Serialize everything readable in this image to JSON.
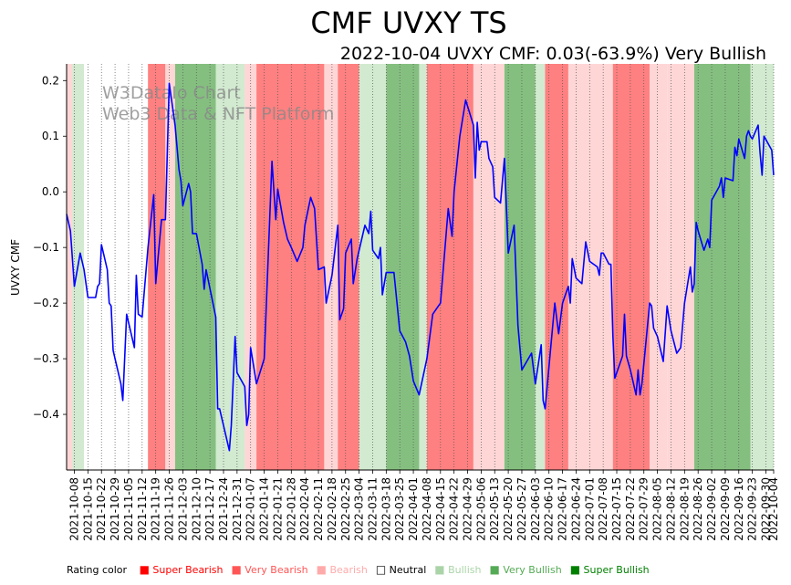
{
  "chart_data": {
    "type": "line",
    "title": "CMF UVXY TS",
    "subtitle": "2022-10-04 UVXY CMF: 0.03(-63.9%) Very Bullish",
    "ylabel": "UVXY CMF",
    "xlabel": "",
    "ylim": [
      -0.5,
      0.23
    ],
    "yticks": [
      -0.4,
      -0.3,
      -0.2,
      -0.1,
      0.0,
      0.1,
      0.2
    ],
    "ytick_labels": [
      "−0.4",
      "−0.3",
      "−0.2",
      "−0.1",
      "0.0",
      "0.1",
      "0.2"
    ],
    "watermark": [
      "W3DataIo Chart",
      "Web3 Data & NFT Platform"
    ],
    "grid": "vertical dotted at each date tick",
    "x_start": "2021-10-04",
    "x_end": "2022-10-04",
    "x_tick_labels": [
      "2021-10-08",
      "2021-10-15",
      "2021-10-22",
      "2021-10-29",
      "2021-11-05",
      "2021-11-12",
      "2021-11-19",
      "2021-11-26",
      "2021-12-03",
      "2021-12-10",
      "2021-12-17",
      "2021-12-24",
      "2021-12-31",
      "2022-01-07",
      "2022-01-14",
      "2022-01-21",
      "2022-01-28",
      "2022-02-04",
      "2022-02-11",
      "2022-02-18",
      "2022-02-25",
      "2022-03-04",
      "2022-03-11",
      "2022-03-18",
      "2022-03-25",
      "2022-04-01",
      "2022-04-08",
      "2022-04-15",
      "2022-04-22",
      "2022-04-29",
      "2022-05-06",
      "2022-05-13",
      "2022-05-20",
      "2022-05-27",
      "2022-06-03",
      "2022-06-10",
      "2022-06-17",
      "2022-06-24",
      "2022-07-01",
      "2022-07-08",
      "2022-07-15",
      "2022-07-22",
      "2022-07-29",
      "2022-08-05",
      "2022-08-12",
      "2022-08-19",
      "2022-08-26",
      "2022-09-02",
      "2022-09-09",
      "2022-09-16",
      "2022-09-23",
      "2022-09-30",
      "2022-10-04"
    ],
    "series": [
      {
        "name": "UVXY CMF",
        "color": "#0000ff",
        "points": [
          [
            "2021-10-04",
            -0.04
          ],
          [
            "2021-10-06",
            -0.07
          ],
          [
            "2021-10-08",
            -0.17
          ],
          [
            "2021-10-11",
            -0.11
          ],
          [
            "2021-10-13",
            -0.14
          ],
          [
            "2021-10-15",
            -0.19
          ],
          [
            "2021-10-19",
            -0.19
          ],
          [
            "2021-10-20",
            -0.17
          ],
          [
            "2021-10-21",
            -0.165
          ],
          [
            "2021-10-22",
            -0.095
          ],
          [
            "2021-10-25",
            -0.14
          ],
          [
            "2021-10-26",
            -0.2
          ],
          [
            "2021-10-27",
            -0.205
          ],
          [
            "2021-10-28",
            -0.285
          ],
          [
            "2021-10-29",
            -0.3
          ],
          [
            "2021-11-01",
            -0.345
          ],
          [
            "2021-11-02",
            -0.375
          ],
          [
            "2021-11-04",
            -0.22
          ],
          [
            "2021-11-08",
            -0.28
          ],
          [
            "2021-11-09",
            -0.15
          ],
          [
            "2021-11-10",
            -0.22
          ],
          [
            "2021-11-12",
            -0.225
          ],
          [
            "2021-11-15",
            -0.1
          ],
          [
            "2021-11-18",
            -0.005
          ],
          [
            "2021-11-19",
            -0.165
          ],
          [
            "2021-11-22",
            -0.05
          ],
          [
            "2021-11-24",
            -0.05
          ],
          [
            "2021-11-26",
            0.195
          ],
          [
            "2021-11-29",
            0.12
          ],
          [
            "2021-12-01",
            0.04
          ],
          [
            "2021-12-02",
            0.02
          ],
          [
            "2021-12-03",
            -0.025
          ],
          [
            "2021-12-06",
            0.015
          ],
          [
            "2021-12-07",
            0.0
          ],
          [
            "2021-12-08",
            -0.075
          ],
          [
            "2021-12-10",
            -0.075
          ],
          [
            "2021-12-13",
            -0.13
          ],
          [
            "2021-12-14",
            -0.175
          ],
          [
            "2021-12-15",
            -0.14
          ],
          [
            "2021-12-20",
            -0.225
          ],
          [
            "2021-12-21",
            -0.39
          ],
          [
            "2021-12-22",
            -0.39
          ],
          [
            "2021-12-27",
            -0.465
          ],
          [
            "2021-12-28",
            -0.42
          ],
          [
            "2021-12-30",
            -0.26
          ],
          [
            "2021-12-31",
            -0.325
          ],
          [
            "2022-01-04",
            -0.35
          ],
          [
            "2022-01-05",
            -0.42
          ],
          [
            "2022-01-06",
            -0.4
          ],
          [
            "2022-01-07",
            -0.28
          ],
          [
            "2022-01-10",
            -0.345
          ],
          [
            "2022-01-14",
            -0.3
          ],
          [
            "2022-01-18",
            0.055
          ],
          [
            "2022-01-20",
            -0.05
          ],
          [
            "2022-01-21",
            0.005
          ],
          [
            "2022-01-24",
            -0.055
          ],
          [
            "2022-01-26",
            -0.085
          ],
          [
            "2022-01-28",
            -0.1
          ],
          [
            "2022-01-31",
            -0.125
          ],
          [
            "2022-02-03",
            -0.1
          ],
          [
            "2022-02-04",
            -0.06
          ],
          [
            "2022-02-07",
            -0.01
          ],
          [
            "2022-02-09",
            -0.03
          ],
          [
            "2022-02-11",
            -0.14
          ],
          [
            "2022-02-14",
            -0.135
          ],
          [
            "2022-02-15",
            -0.2
          ],
          [
            "2022-02-18",
            -0.15
          ],
          [
            "2022-02-21",
            -0.06
          ],
          [
            "2022-02-22",
            -0.23
          ],
          [
            "2022-02-24",
            -0.21
          ],
          [
            "2022-02-25",
            -0.11
          ],
          [
            "2022-02-28",
            -0.085
          ],
          [
            "2022-03-01",
            -0.165
          ],
          [
            "2022-03-03",
            -0.12
          ],
          [
            "2022-03-07",
            -0.06
          ],
          [
            "2022-03-09",
            -0.075
          ],
          [
            "2022-03-10",
            -0.035
          ],
          [
            "2022-03-11",
            -0.105
          ],
          [
            "2022-03-14",
            -0.12
          ],
          [
            "2022-03-15",
            -0.1
          ],
          [
            "2022-03-16",
            -0.185
          ],
          [
            "2022-03-18",
            -0.145
          ],
          [
            "2022-03-22",
            -0.145
          ],
          [
            "2022-03-25",
            -0.25
          ],
          [
            "2022-03-28",
            -0.27
          ],
          [
            "2022-03-30",
            -0.295
          ],
          [
            "2022-04-01",
            -0.34
          ],
          [
            "2022-04-04",
            -0.365
          ],
          [
            "2022-04-08",
            -0.3
          ],
          [
            "2022-04-11",
            -0.22
          ],
          [
            "2022-04-13",
            -0.21
          ],
          [
            "2022-04-15",
            -0.2
          ],
          [
            "2022-04-19",
            -0.03
          ],
          [
            "2022-04-21",
            -0.08
          ],
          [
            "2022-04-22",
            0.0
          ],
          [
            "2022-04-25",
            0.1
          ],
          [
            "2022-04-28",
            0.165
          ],
          [
            "2022-05-02",
            0.12
          ],
          [
            "2022-05-03",
            0.025
          ],
          [
            "2022-05-04",
            0.125
          ],
          [
            "2022-05-05",
            0.075
          ],
          [
            "2022-05-06",
            0.09
          ],
          [
            "2022-05-09",
            0.09
          ],
          [
            "2022-05-10",
            0.06
          ],
          [
            "2022-05-12",
            0.045
          ],
          [
            "2022-05-13",
            -0.01
          ],
          [
            "2022-05-16",
            -0.02
          ],
          [
            "2022-05-18",
            0.06
          ],
          [
            "2022-05-20",
            -0.11
          ],
          [
            "2022-05-23",
            -0.06
          ],
          [
            "2022-05-25",
            -0.24
          ],
          [
            "2022-05-27",
            -0.32
          ],
          [
            "2022-06-01",
            -0.29
          ],
          [
            "2022-06-03",
            -0.345
          ],
          [
            "2022-06-06",
            -0.275
          ],
          [
            "2022-06-07",
            -0.375
          ],
          [
            "2022-06-08",
            -0.39
          ],
          [
            "2022-06-13",
            -0.2
          ],
          [
            "2022-06-15",
            -0.255
          ],
          [
            "2022-06-17",
            -0.2
          ],
          [
            "2022-06-20",
            -0.17
          ],
          [
            "2022-06-21",
            -0.2
          ],
          [
            "2022-06-22",
            -0.12
          ],
          [
            "2022-06-24",
            -0.155
          ],
          [
            "2022-06-27",
            -0.165
          ],
          [
            "2022-06-29",
            -0.09
          ],
          [
            "2022-07-01",
            -0.125
          ],
          [
            "2022-07-05",
            -0.135
          ],
          [
            "2022-07-06",
            -0.15
          ],
          [
            "2022-07-07",
            -0.11
          ],
          [
            "2022-07-08",
            -0.11
          ],
          [
            "2022-07-11",
            -0.13
          ],
          [
            "2022-07-12",
            -0.13
          ],
          [
            "2022-07-13",
            -0.26
          ],
          [
            "2022-07-14",
            -0.335
          ],
          [
            "2022-07-18",
            -0.295
          ],
          [
            "2022-07-19",
            -0.22
          ],
          [
            "2022-07-20",
            -0.295
          ],
          [
            "2022-07-22",
            -0.32
          ],
          [
            "2022-07-25",
            -0.365
          ],
          [
            "2022-07-26",
            -0.32
          ],
          [
            "2022-07-27",
            -0.365
          ],
          [
            "2022-07-28",
            -0.345
          ],
          [
            "2022-08-01",
            -0.2
          ],
          [
            "2022-08-02",
            -0.205
          ],
          [
            "2022-08-03",
            -0.245
          ],
          [
            "2022-08-05",
            -0.26
          ],
          [
            "2022-08-08",
            -0.305
          ],
          [
            "2022-08-10",
            -0.205
          ],
          [
            "2022-08-12",
            -0.25
          ],
          [
            "2022-08-15",
            -0.29
          ],
          [
            "2022-08-17",
            -0.28
          ],
          [
            "2022-08-19",
            -0.2
          ],
          [
            "2022-08-22",
            -0.135
          ],
          [
            "2022-08-23",
            -0.18
          ],
          [
            "2022-08-24",
            -0.165
          ],
          [
            "2022-08-25",
            -0.055
          ],
          [
            "2022-08-26",
            -0.07
          ],
          [
            "2022-08-29",
            -0.105
          ],
          [
            "2022-08-31",
            -0.085
          ],
          [
            "2022-09-01",
            -0.1
          ],
          [
            "2022-09-02",
            -0.015
          ],
          [
            "2022-09-06",
            0.01
          ],
          [
            "2022-09-07",
            0.025
          ],
          [
            "2022-09-08",
            -0.01
          ],
          [
            "2022-09-09",
            0.025
          ],
          [
            "2022-09-13",
            0.02
          ],
          [
            "2022-09-14",
            0.08
          ],
          [
            "2022-09-15",
            0.065
          ],
          [
            "2022-09-16",
            0.095
          ],
          [
            "2022-09-19",
            0.06
          ],
          [
            "2022-09-20",
            0.1
          ],
          [
            "2022-09-21",
            0.11
          ],
          [
            "2022-09-22",
            0.1
          ],
          [
            "2022-09-23",
            0.095
          ],
          [
            "2022-09-26",
            0.12
          ],
          [
            "2022-09-27",
            0.07
          ],
          [
            "2022-09-28",
            0.03
          ],
          [
            "2022-09-29",
            0.1
          ],
          [
            "2022-10-03",
            0.075
          ],
          [
            "2022-10-04",
            0.03
          ]
        ]
      }
    ],
    "rating_bands": [
      [
        "2021-10-04",
        "2021-10-07",
        "bearish"
      ],
      [
        "2021-10-07",
        "2021-10-13",
        "bullish"
      ],
      [
        "2021-10-13",
        "2021-11-15",
        "neutral"
      ],
      [
        "2021-11-15",
        "2021-11-24",
        "very_bearish"
      ],
      [
        "2021-11-24",
        "2021-11-29",
        "bearish"
      ],
      [
        "2021-11-29",
        "2021-12-20",
        "very_bullish"
      ],
      [
        "2021-12-20",
        "2022-01-04",
        "bullish"
      ],
      [
        "2022-01-04",
        "2022-01-10",
        "bearish"
      ],
      [
        "2022-01-10",
        "2022-02-14",
        "very_bearish"
      ],
      [
        "2022-02-14",
        "2022-02-21",
        "bearish"
      ],
      [
        "2022-02-21",
        "2022-03-04",
        "very_bearish"
      ],
      [
        "2022-03-04",
        "2022-03-18",
        "bullish"
      ],
      [
        "2022-03-18",
        "2022-04-04",
        "very_bullish"
      ],
      [
        "2022-04-04",
        "2022-04-08",
        "bullish"
      ],
      [
        "2022-04-08",
        "2022-05-02",
        "very_bearish"
      ],
      [
        "2022-05-02",
        "2022-05-18",
        "bearish"
      ],
      [
        "2022-05-18",
        "2022-06-03",
        "very_bullish"
      ],
      [
        "2022-06-03",
        "2022-06-08",
        "bullish"
      ],
      [
        "2022-06-08",
        "2022-06-20",
        "very_bearish"
      ],
      [
        "2022-06-20",
        "2022-07-13",
        "bearish"
      ],
      [
        "2022-07-13",
        "2022-08-01",
        "very_bearish"
      ],
      [
        "2022-08-01",
        "2022-08-10",
        "bearish"
      ],
      [
        "2022-08-10",
        "2022-08-24",
        "bearish"
      ],
      [
        "2022-08-24",
        "2022-09-22",
        "very_bullish"
      ],
      [
        "2022-09-22",
        "2022-10-04",
        "bullish"
      ]
    ],
    "band_colors": {
      "super_bearish": "#ff0000",
      "very_bearish": "#ff8080",
      "bearish": "#ffd6d6",
      "neutral": "#ffffff",
      "bullish": "#d2ead0",
      "very_bullish": "#85bf80",
      "super_bullish": "#008000"
    },
    "legend": {
      "label": "Rating color",
      "items": [
        {
          "name": "Super Bearish",
          "color": "#ff0000",
          "text_color": "#ff0000"
        },
        {
          "name": "Very Bearish",
          "color": "#ff5555",
          "text_color": "#ff5555"
        },
        {
          "name": "Bearish",
          "color": "#ffaaaa",
          "text_color": "#ffaaaa"
        },
        {
          "name": "Neutral",
          "color": "#ffffff",
          "text_color": "#000000"
        },
        {
          "name": "Bullish",
          "color": "#aad4a8",
          "text_color": "#aad4a8"
        },
        {
          "name": "Very Bullish",
          "color": "#55aa55",
          "text_color": "#55aa55"
        },
        {
          "name": "Super Bullish",
          "color": "#008000",
          "text_color": "#008000"
        }
      ]
    }
  }
}
